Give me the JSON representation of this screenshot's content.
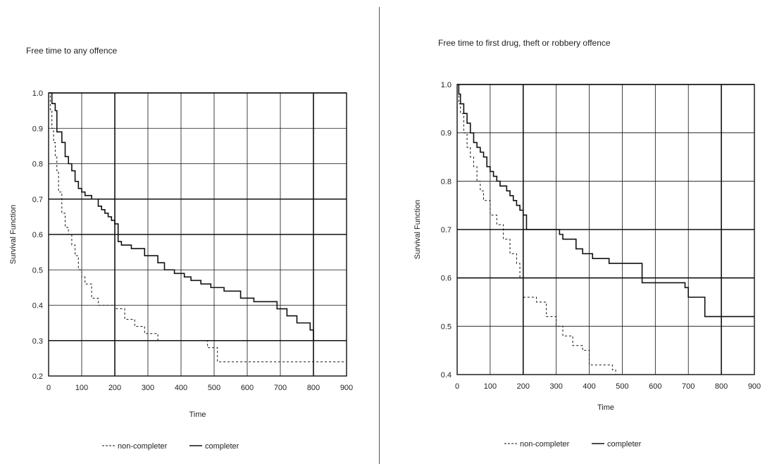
{
  "chart_data": [
    {
      "type": "line",
      "title": "Free time to any offence",
      "xlabel": "Time",
      "ylabel": "Survival Function",
      "xlim": [
        0,
        900
      ],
      "ylim": [
        0.2,
        1.0
      ],
      "xticks": [
        "0",
        "100",
        "200",
        "300",
        "400",
        "500",
        "600",
        "700",
        "800",
        "900"
      ],
      "yticks": [
        "0.2",
        "0.3",
        "0.4",
        "0.5",
        "0.6",
        "0.7",
        "0.8",
        "0.9",
        "1.0"
      ],
      "grid": true,
      "legend_position": "bottom",
      "series": [
        {
          "name": "non-completer",
          "style": "dashed",
          "x": [
            0,
            5,
            10,
            15,
            20,
            25,
            30,
            40,
            50,
            60,
            70,
            80,
            90,
            100,
            110,
            130,
            150,
            170,
            200,
            230,
            260,
            290,
            330,
            380,
            430,
            480,
            510,
            900
          ],
          "y": [
            1.0,
            0.95,
            0.9,
            0.86,
            0.82,
            0.78,
            0.72,
            0.66,
            0.62,
            0.6,
            0.57,
            0.54,
            0.5,
            0.48,
            0.46,
            0.42,
            0.4,
            0.4,
            0.39,
            0.36,
            0.34,
            0.32,
            0.3,
            0.3,
            0.3,
            0.28,
            0.24,
            0.24
          ]
        },
        {
          "name": "completer",
          "style": "solid",
          "x": [
            0,
            10,
            20,
            25,
            40,
            50,
            60,
            70,
            80,
            90,
            100,
            110,
            130,
            150,
            160,
            170,
            180,
            190,
            200,
            210,
            220,
            250,
            290,
            330,
            350,
            380,
            410,
            430,
            460,
            490,
            530,
            580,
            620,
            690,
            720,
            750,
            790,
            800,
            900
          ],
          "y": [
            1.0,
            0.97,
            0.95,
            0.89,
            0.86,
            0.82,
            0.8,
            0.78,
            0.75,
            0.73,
            0.72,
            0.71,
            0.7,
            0.68,
            0.67,
            0.66,
            0.65,
            0.64,
            0.63,
            0.58,
            0.57,
            0.56,
            0.54,
            0.52,
            0.5,
            0.49,
            0.48,
            0.47,
            0.46,
            0.45,
            0.44,
            0.42,
            0.41,
            0.39,
            0.37,
            0.35,
            0.33,
            0.3,
            0.3
          ]
        }
      ]
    },
    {
      "type": "line",
      "title": "Free time to first drug, theft or robbery offence",
      "xlabel": "Time",
      "ylabel": "Survival Function",
      "xlim": [
        0,
        900
      ],
      "ylim": [
        0.4,
        1.0
      ],
      "xticks": [
        "0",
        "100",
        "200",
        "300",
        "400",
        "500",
        "600",
        "700",
        "800",
        "900"
      ],
      "yticks": [
        "0.4",
        "0.5",
        "0.6",
        "0.7",
        "0.8",
        "0.9",
        "1.0"
      ],
      "grid": true,
      "legend_position": "bottom",
      "series": [
        {
          "name": "non-completer",
          "style": "dashed",
          "x": [
            0,
            5,
            10,
            20,
            30,
            40,
            50,
            60,
            70,
            80,
            100,
            120,
            140,
            160,
            180,
            190,
            200,
            240,
            270,
            300,
            320,
            350,
            380,
            400,
            450,
            470,
            480,
            900
          ],
          "y": [
            1.0,
            0.96,
            0.94,
            0.9,
            0.87,
            0.85,
            0.83,
            0.8,
            0.78,
            0.76,
            0.73,
            0.71,
            0.68,
            0.65,
            0.63,
            0.6,
            0.56,
            0.55,
            0.52,
            0.5,
            0.48,
            0.46,
            0.45,
            0.42,
            0.42,
            0.41,
            0.4,
            0.4
          ]
        },
        {
          "name": "completer",
          "style": "solid",
          "x": [
            0,
            5,
            10,
            20,
            30,
            40,
            50,
            60,
            70,
            80,
            90,
            100,
            110,
            120,
            130,
            150,
            160,
            170,
            180,
            190,
            200,
            210,
            310,
            320,
            360,
            380,
            410,
            460,
            560,
            690,
            700,
            750,
            900
          ],
          "y": [
            1.0,
            0.98,
            0.96,
            0.94,
            0.92,
            0.9,
            0.88,
            0.87,
            0.86,
            0.85,
            0.83,
            0.82,
            0.81,
            0.8,
            0.79,
            0.78,
            0.77,
            0.76,
            0.75,
            0.74,
            0.73,
            0.7,
            0.69,
            0.68,
            0.66,
            0.65,
            0.64,
            0.63,
            0.59,
            0.58,
            0.56,
            0.52,
            0.52
          ]
        }
      ]
    }
  ]
}
